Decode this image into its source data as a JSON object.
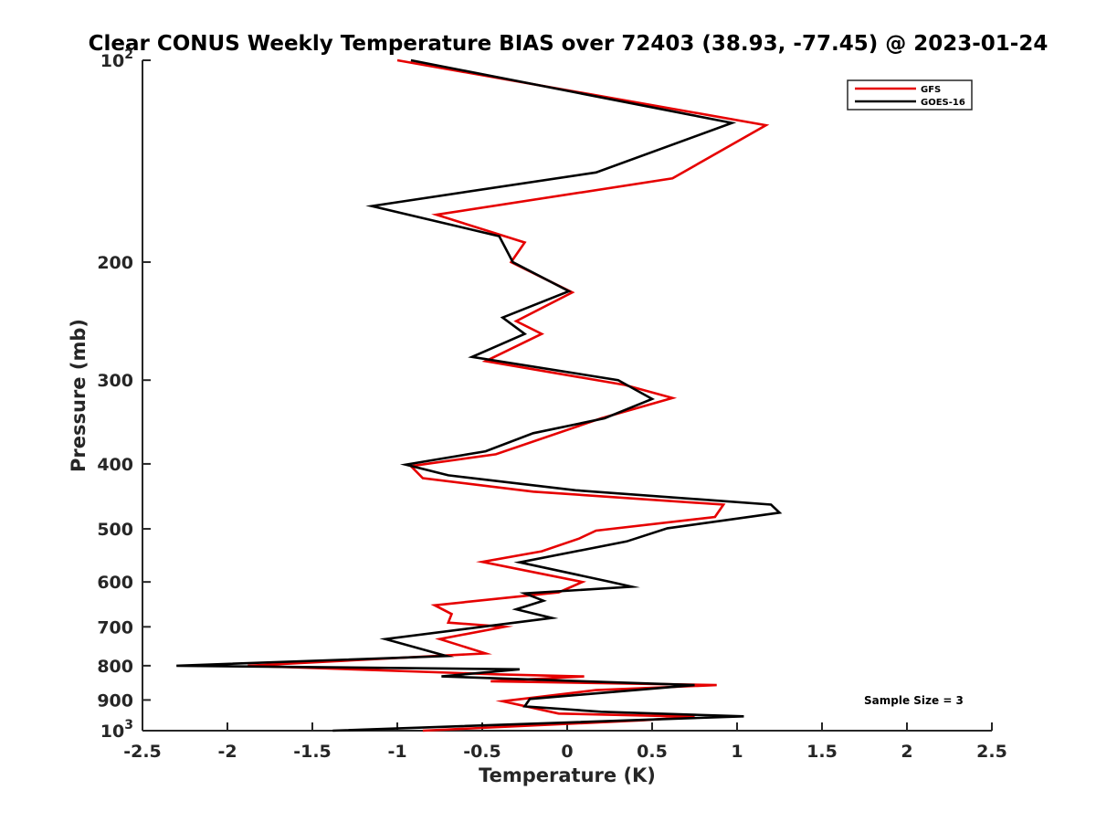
{
  "chart_data": {
    "type": "line",
    "title": "Clear CONUS Weekly Temperature BIAS over 72403 (38.93, -77.45) @ 2023-01-24",
    "xlabel": "Temperature (K)",
    "ylabel": "Pressure (mb)",
    "xlim": [
      -2.5,
      2.5
    ],
    "ylim": [
      100,
      1000
    ],
    "yscale": "log",
    "y_reversed": true,
    "xticks": [
      -2.5,
      -2,
      -1.5,
      -1,
      -0.5,
      0,
      0.5,
      1,
      1.5,
      2,
      2.5
    ],
    "xtick_labels": [
      "-2.5",
      "-2",
      "-1.5",
      "-1",
      "-0.5",
      "0",
      "0.5",
      "1",
      "1.5",
      "2",
      "2.5"
    ],
    "yticks": [
      100,
      200,
      300,
      400,
      500,
      600,
      700,
      800,
      900,
      1000
    ],
    "ytick_labels": [
      "10^2",
      "200",
      "300",
      "400",
      "500",
      "600",
      "700",
      "800",
      "900",
      "10^3"
    ],
    "grid": false,
    "legend": "top-right",
    "annotation": "Sample Size = 3",
    "series": [
      {
        "name": "GFS",
        "color": "#e60000",
        "points": [
          [
            -1.0,
            100
          ],
          [
            1.17,
            125
          ],
          [
            0.62,
            150
          ],
          [
            -0.77,
            170
          ],
          [
            -0.25,
            187
          ],
          [
            -0.33,
            200
          ],
          [
            0.03,
            222
          ],
          [
            -0.3,
            245
          ],
          [
            -0.15,
            256
          ],
          [
            -0.48,
            281
          ],
          [
            0.34,
            305
          ],
          [
            0.62,
            319
          ],
          [
            0.2,
            342
          ],
          [
            -0.42,
            387
          ],
          [
            -0.92,
            403
          ],
          [
            -0.85,
            420
          ],
          [
            -0.2,
            440
          ],
          [
            0.92,
            460
          ],
          [
            0.87,
            480
          ],
          [
            0.17,
            503
          ],
          [
            0.07,
            517
          ],
          [
            -0.15,
            540
          ],
          [
            -0.5,
            560
          ],
          [
            0.09,
            600
          ],
          [
            -0.05,
            622
          ],
          [
            -0.78,
            650
          ],
          [
            -0.68,
            670
          ],
          [
            -0.7,
            690
          ],
          [
            -0.37,
            700
          ],
          [
            -0.75,
            730
          ],
          [
            -0.48,
            767
          ],
          [
            -1.88,
            800
          ],
          [
            -0.42,
            824
          ],
          [
            0.1,
            830
          ],
          [
            -0.45,
            844
          ],
          [
            0.88,
            855
          ],
          [
            0.17,
            870
          ],
          [
            -0.38,
            904
          ],
          [
            -0.05,
            943
          ],
          [
            0.75,
            953
          ],
          [
            0.45,
            965
          ],
          [
            -0.85,
            1000
          ]
        ]
      },
      {
        "name": "GOES-16",
        "color": "#000000",
        "points": [
          [
            -0.92,
            100
          ],
          [
            0.97,
            124
          ],
          [
            0.17,
            147
          ],
          [
            -1.15,
            165
          ],
          [
            -0.4,
            183
          ],
          [
            -0.32,
            200
          ],
          [
            0.01,
            221
          ],
          [
            -0.38,
            242
          ],
          [
            -0.25,
            256
          ],
          [
            -0.56,
            277
          ],
          [
            0.3,
            300
          ],
          [
            0.5,
            320
          ],
          [
            0.22,
            342
          ],
          [
            -0.2,
            360
          ],
          [
            -0.48,
            383
          ],
          [
            -0.95,
            401
          ],
          [
            -0.7,
            416
          ],
          [
            0.05,
            438
          ],
          [
            1.2,
            460
          ],
          [
            1.25,
            473
          ],
          [
            0.59,
            499
          ],
          [
            0.35,
            522
          ],
          [
            -0.28,
            561
          ],
          [
            0.23,
            598
          ],
          [
            0.38,
            610
          ],
          [
            -0.25,
            624
          ],
          [
            -0.14,
            640
          ],
          [
            -0.3,
            659
          ],
          [
            -0.09,
            679
          ],
          [
            -1.07,
            730
          ],
          [
            -0.71,
            774
          ],
          [
            -2.3,
            800
          ],
          [
            -0.28,
            810
          ],
          [
            -0.74,
            830
          ],
          [
            0.75,
            855
          ],
          [
            -0.22,
            897
          ],
          [
            -0.25,
            920
          ],
          [
            0.2,
            937
          ],
          [
            1.04,
            952
          ],
          [
            -1.38,
            1000
          ]
        ]
      }
    ]
  }
}
